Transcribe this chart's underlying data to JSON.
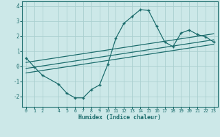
{
  "xlabel": "Humidex (Indice chaleur)",
  "ylabel": "",
  "bg_color": "#cce8e8",
  "line_color": "#1a6b6b",
  "grid_color": "#aacfcf",
  "xlim": [
    -0.5,
    23.5
  ],
  "ylim": [
    -2.7,
    4.3
  ],
  "xticks": [
    0,
    1,
    2,
    4,
    5,
    6,
    7,
    8,
    9,
    10,
    11,
    12,
    13,
    14,
    15,
    16,
    17,
    18,
    19,
    20,
    21,
    22,
    23
  ],
  "yticks": [
    -2,
    -1,
    0,
    1,
    2,
    3,
    4
  ],
  "curve1_x": [
    0,
    1,
    2,
    4,
    5,
    6,
    7,
    8,
    9,
    10,
    11,
    12,
    13,
    14,
    15,
    16,
    17,
    18,
    19,
    20,
    21,
    22,
    23
  ],
  "curve1_y": [
    0.55,
    -0.05,
    -0.6,
    -1.2,
    -1.8,
    -2.1,
    -2.1,
    -1.55,
    -1.25,
    0.1,
    1.85,
    2.85,
    3.3,
    3.75,
    3.7,
    2.65,
    1.6,
    1.3,
    2.2,
    2.4,
    2.1,
    1.95,
    1.6
  ],
  "line1_x": [
    0,
    23
  ],
  "line1_y": [
    -0.15,
    1.75
  ],
  "line2_x": [
    0,
    23
  ],
  "line2_y": [
    0.25,
    2.15
  ],
  "line3_x": [
    0,
    23
  ],
  "line3_y": [
    -0.45,
    1.45
  ]
}
